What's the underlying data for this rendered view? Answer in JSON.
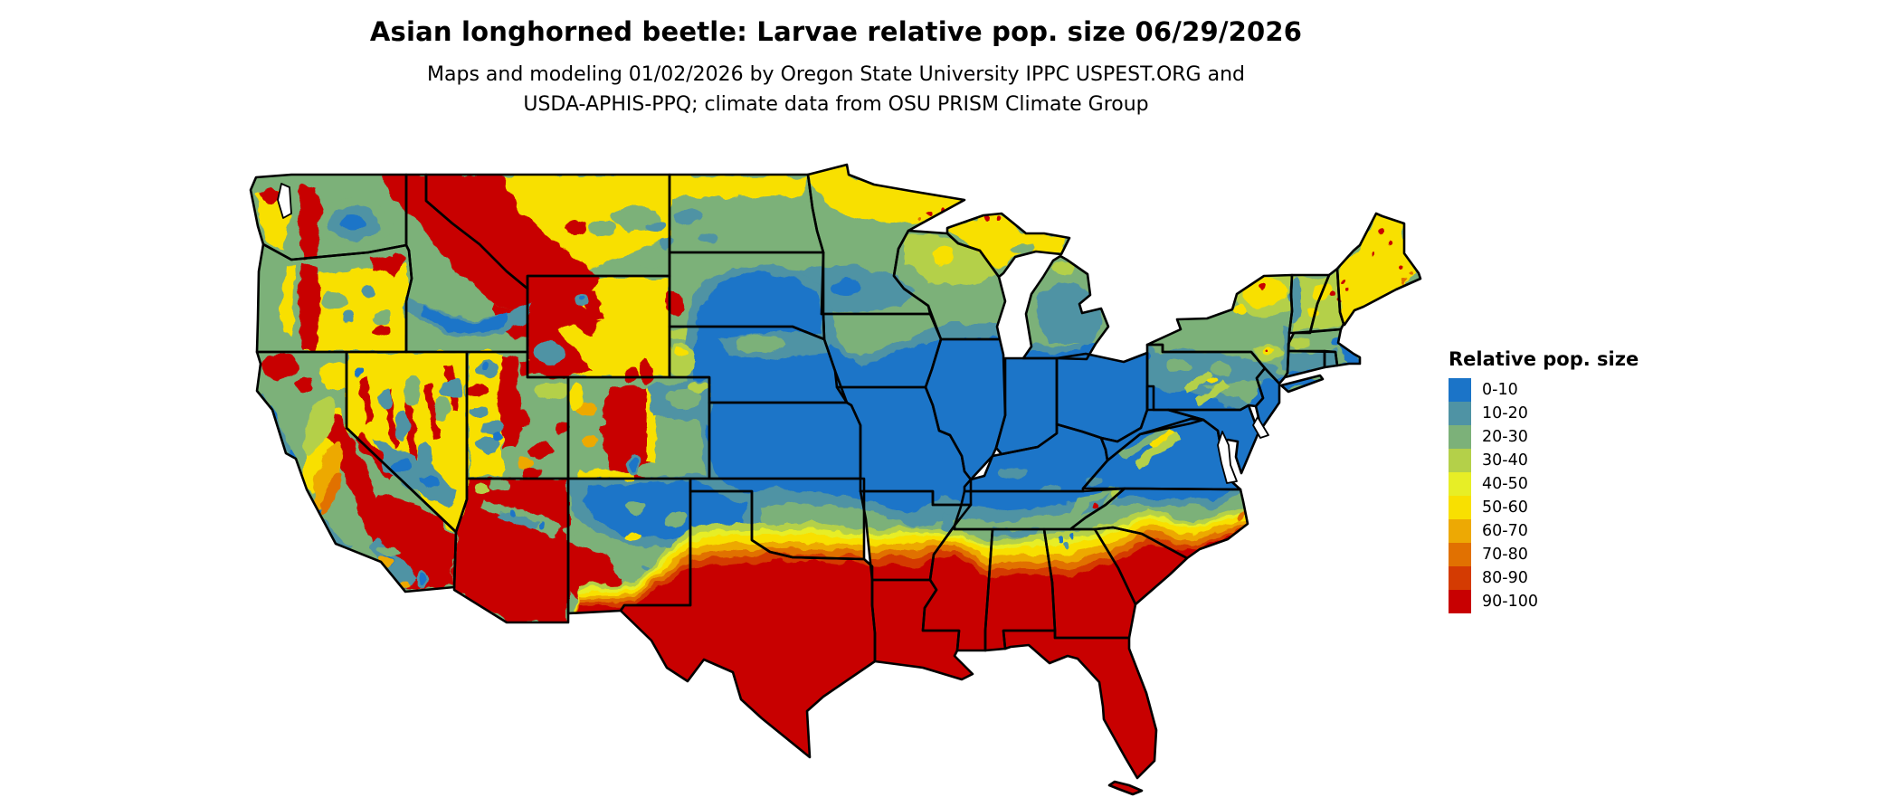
{
  "page": {
    "background": "#ffffff"
  },
  "title": "Asian longhorned beetle: Larvae relative pop. size 06/29/2026",
  "subtitle": {
    "line1": "Maps and modeling 01/02/2026 by Oregon State University IPPC USPEST.ORG and",
    "line2": "USDA-APHIS-PPQ; climate data from OSU PRISM Climate Group"
  },
  "legend": {
    "title": "Relative pop. size",
    "items": [
      {
        "label": "0-10",
        "color": "#1b74c8"
      },
      {
        "label": "10-20",
        "color": "#4f93a4"
      },
      {
        "label": "20-30",
        "color": "#7cb179"
      },
      {
        "label": "30-40",
        "color": "#b4d049"
      },
      {
        "label": "40-50",
        "color": "#e7ee26"
      },
      {
        "label": "50-60",
        "color": "#f8e001"
      },
      {
        "label": "60-70",
        "color": "#eda904"
      },
      {
        "label": "70-80",
        "color": "#e17101"
      },
      {
        "label": "80-90",
        "color": "#d43b02"
      },
      {
        "label": "90-100",
        "color": "#c80001"
      }
    ]
  },
  "map": {
    "region": "Contiguous United States",
    "kind": "raster relative population size surface with state boundaries",
    "boundary_color": "#000000",
    "water_color": "#ffffff"
  }
}
